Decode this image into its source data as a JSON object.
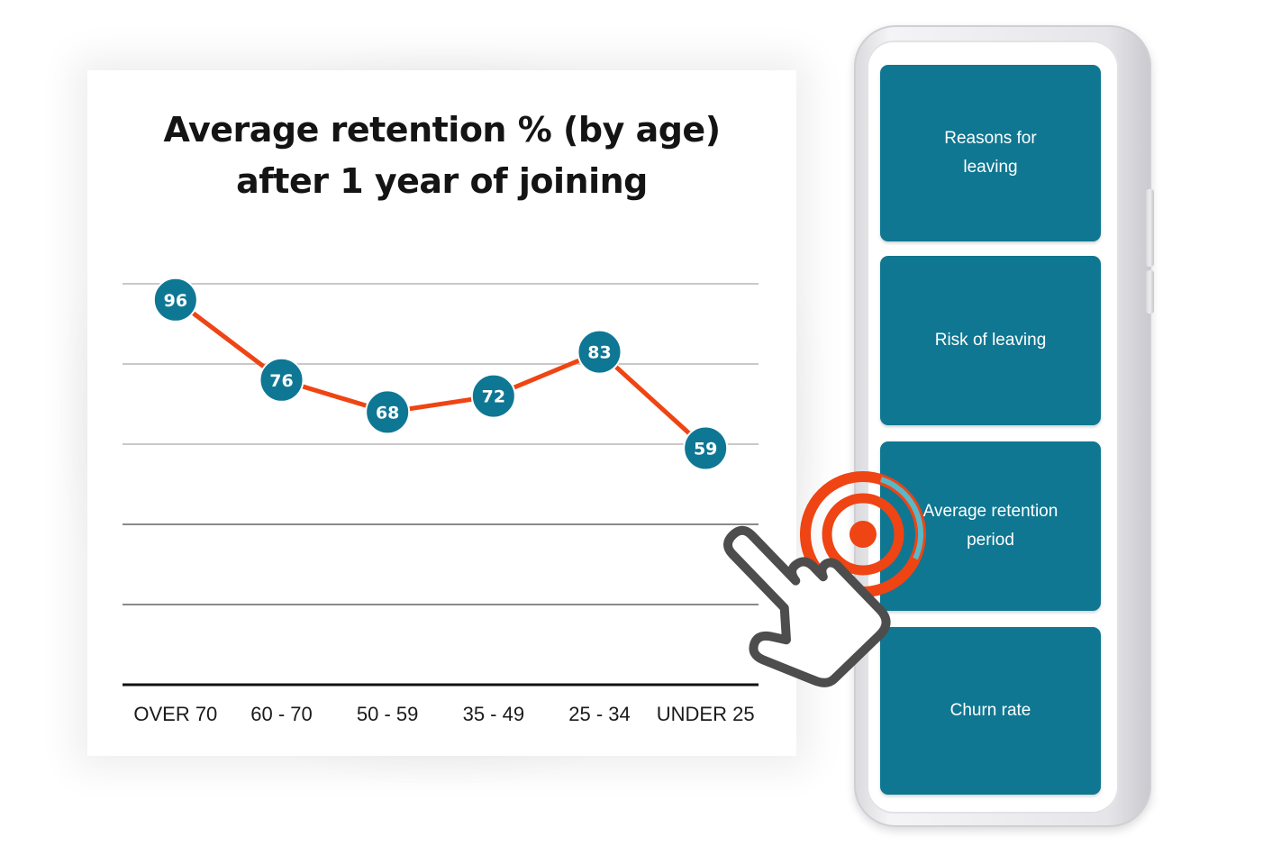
{
  "chart_data": {
    "type": "line",
    "title": "Average retention % (by age) after 1 year of joining",
    "title_lines": [
      "Average retention % (by age)",
      "after 1 year of joining"
    ],
    "categories": [
      "OVER 70",
      "60 - 70",
      "50 - 59",
      "35 - 49",
      "25 - 34",
      "UNDER 25"
    ],
    "values": [
      96,
      76,
      68,
      72,
      83,
      59
    ],
    "data_labels": [
      "96",
      "76",
      "68",
      "72",
      "83",
      "59"
    ],
    "ylim": [
      0,
      100
    ],
    "gridlines": [
      20,
      40,
      60,
      80,
      100
    ],
    "grid": true,
    "xlabel": "",
    "ylabel": "",
    "line_color": "#ef4413",
    "marker_color": "#0e7794"
  },
  "phone": {
    "tiles": [
      {
        "label": "Reasons for leaving",
        "lines": [
          "Reasons for",
          "leaving"
        ]
      },
      {
        "label": "Risk of leaving",
        "lines": [
          "Risk of leaving"
        ]
      },
      {
        "label": "Average retention period",
        "lines": [
          "Average retention",
          "period"
        ]
      },
      {
        "label": "Churn rate",
        "lines": [
          "Churn rate"
        ]
      }
    ],
    "tile_color": "#0f7792"
  },
  "tap_indicator": {
    "icon": "hand-pointer-icon",
    "ring_color": "#ef4413",
    "accent_color": "#5bb8c8",
    "target": "Average retention period"
  }
}
